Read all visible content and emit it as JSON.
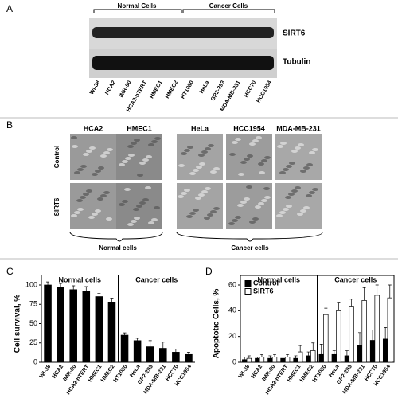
{
  "panel_a": {
    "label": "A",
    "groups": [
      "Normal Cells",
      "Cancer Cells"
    ],
    "bands": [
      "SIRT6",
      "Tubulin"
    ],
    "lanes": [
      "WI-38",
      "HCA2",
      "IMR-90",
      "HCA2-hTERT",
      "HMEC1",
      "HMEC2",
      "HT1080",
      "HeLa",
      "GP2-293",
      "MDA-MB-231",
      "HCC70",
      "HCC1954"
    ]
  },
  "panel_b": {
    "label": "B",
    "columns": [
      "HCA2",
      "HMEC1",
      "HeLa",
      "HCC1954",
      "MDA-MB-231"
    ],
    "rows": [
      "Control",
      "SIRT6"
    ],
    "groups": [
      "Normal cells",
      "Cancer cells"
    ]
  },
  "panel_c": {
    "label": "C"
  },
  "panel_d": {
    "label": "D"
  },
  "chart_data": [
    {
      "type": "bar",
      "ylabel": "Cell survival, %",
      "group_labels": [
        "Normal cells",
        "Cancer cells"
      ],
      "categories": [
        "WI-38",
        "HCA2",
        "IMR-90",
        "HCA2-hTERT",
        "HMEC1",
        "HMEC2",
        "HT1080",
        "HeLa",
        "GP2-293",
        "MDA-MB-231",
        "HCC70",
        "HCC1954"
      ],
      "values": [
        100,
        97,
        94,
        92,
        85,
        77,
        35,
        28,
        20,
        18,
        13,
        10
      ],
      "errors": [
        4,
        5,
        5,
        6,
        4,
        6,
        3,
        3,
        8,
        8,
        4,
        3
      ],
      "color": "#000000",
      "ylim": [
        0,
        100
      ],
      "yticks": [
        0,
        25,
        50,
        75,
        100
      ]
    },
    {
      "type": "bar",
      "ylabel": "Apoptotic Cells, %",
      "group_labels": [
        "Normal cells",
        "Cancer cells"
      ],
      "categories": [
        "WI-38",
        "HCA2",
        "IMR-90",
        "HCA2-hTERT",
        "HMEC1",
        "HMEC2",
        "HT1080",
        "HeLa",
        "GP2-293",
        "MDA-MB-231",
        "HCC70",
        "HCC1954"
      ],
      "series": [
        {
          "name": "Control",
          "color": "#000000",
          "values": [
            2,
            3,
            3,
            3,
            3,
            5,
            6,
            6,
            5,
            13,
            17,
            18
          ],
          "errors": [
            2,
            1,
            2,
            1,
            2,
            3,
            8,
            3,
            4,
            10,
            8,
            9
          ]
        },
        {
          "name": "SIRT6",
          "color": "#ffffff",
          "values": [
            3,
            4,
            4,
            4,
            8,
            9,
            37,
            40,
            43,
            48,
            52,
            50
          ],
          "errors": [
            2,
            2,
            2,
            2,
            5,
            6,
            5,
            6,
            6,
            10,
            8,
            10
          ]
        }
      ],
      "ylim": [
        0,
        60
      ],
      "yticks": [
        0,
        20,
        40,
        60
      ],
      "legend": "upper left"
    }
  ]
}
